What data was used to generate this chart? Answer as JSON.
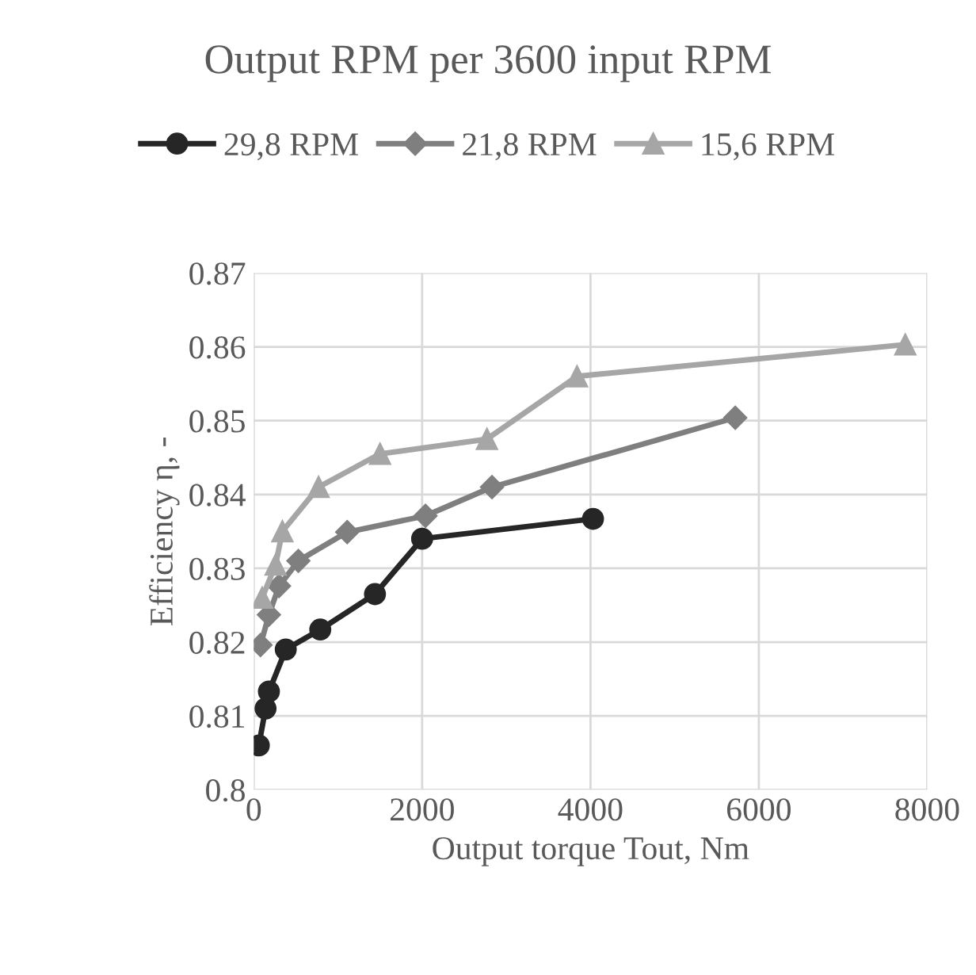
{
  "chart_data": {
    "type": "line",
    "title": "Output RPM per 3600 input RPM",
    "xlabel": "Output torque Tout, Nm",
    "ylabel": "Efficiency η, -",
    "xlim": [
      0,
      8000
    ],
    "xticks": [
      0,
      2000,
      4000,
      6000,
      8000
    ],
    "ylim": [
      0.8,
      0.87
    ],
    "yticks": [
      {
        "value": 0.8,
        "label": "0.8"
      },
      0.81,
      0.82,
      0.83,
      0.84,
      0.85,
      0.86,
      0.87
    ],
    "grid": true,
    "legend": "top",
    "line_style": "solid",
    "series": [
      {
        "name": "29,8 RPM",
        "color": "#262626",
        "marker": "circle",
        "x": [
          60,
          140,
          180,
          380,
          790,
          1440,
          2000,
          4030
        ],
        "values": [
          0.806,
          0.811,
          0.8133,
          0.819,
          0.8217,
          0.8265,
          0.834,
          0.8367
        ]
      },
      {
        "name": "21,8 RPM",
        "color": "#7f7f7f",
        "marker": "diamond",
        "x": [
          80,
          180,
          300,
          530,
          1110,
          2040,
          2830,
          5720
        ],
        "values": [
          0.8196,
          0.8237,
          0.8276,
          0.831,
          0.8349,
          0.8371,
          0.841,
          0.8504
        ]
      },
      {
        "name": "15,6 RPM",
        "color": "#a6a6a6",
        "marker": "triangle",
        "x": [
          100,
          260,
          340,
          770,
          1500,
          2770,
          3840,
          7740
        ],
        "values": [
          0.826,
          0.8305,
          0.835,
          0.841,
          0.8455,
          0.8475,
          0.856,
          0.8603
        ]
      }
    ]
  }
}
